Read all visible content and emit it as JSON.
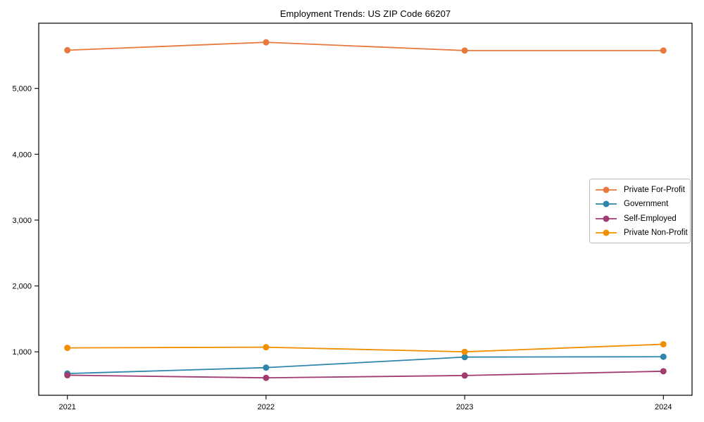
{
  "chart_data": {
    "type": "line",
    "title": "Employment Trends: US ZIP Code 66207",
    "x": [
      "2021",
      "2022",
      "2023",
      "2024"
    ],
    "series": [
      {
        "name": "Private For-Profit",
        "color": "#E8793D",
        "values": [
          5580,
          5700,
          5575,
          5575
        ]
      },
      {
        "name": "Government",
        "color": "#2E86AB",
        "values": [
          670,
          760,
          920,
          925
        ]
      },
      {
        "name": "Self-Employed",
        "color": "#A23B72",
        "values": [
          645,
          605,
          640,
          705
        ]
      },
      {
        "name": "Private Non-Profit",
        "color": "#F18F01",
        "values": [
          1060,
          1070,
          1000,
          1115
        ]
      }
    ],
    "ylim": [
      340,
      5990
    ],
    "yticks": [
      {
        "value": 1000,
        "label": "1,000"
      },
      {
        "value": 2000,
        "label": "2,000"
      },
      {
        "value": 3000,
        "label": "3,000"
      },
      {
        "value": 4000,
        "label": "4,000"
      },
      {
        "value": 5000,
        "label": "5,000"
      }
    ],
    "legend_position": "center-right",
    "grid": false,
    "marker": "circle"
  },
  "colors": {
    "axis": "#000000",
    "background": "#ffffff",
    "legend_border": "#b9b9b9"
  }
}
